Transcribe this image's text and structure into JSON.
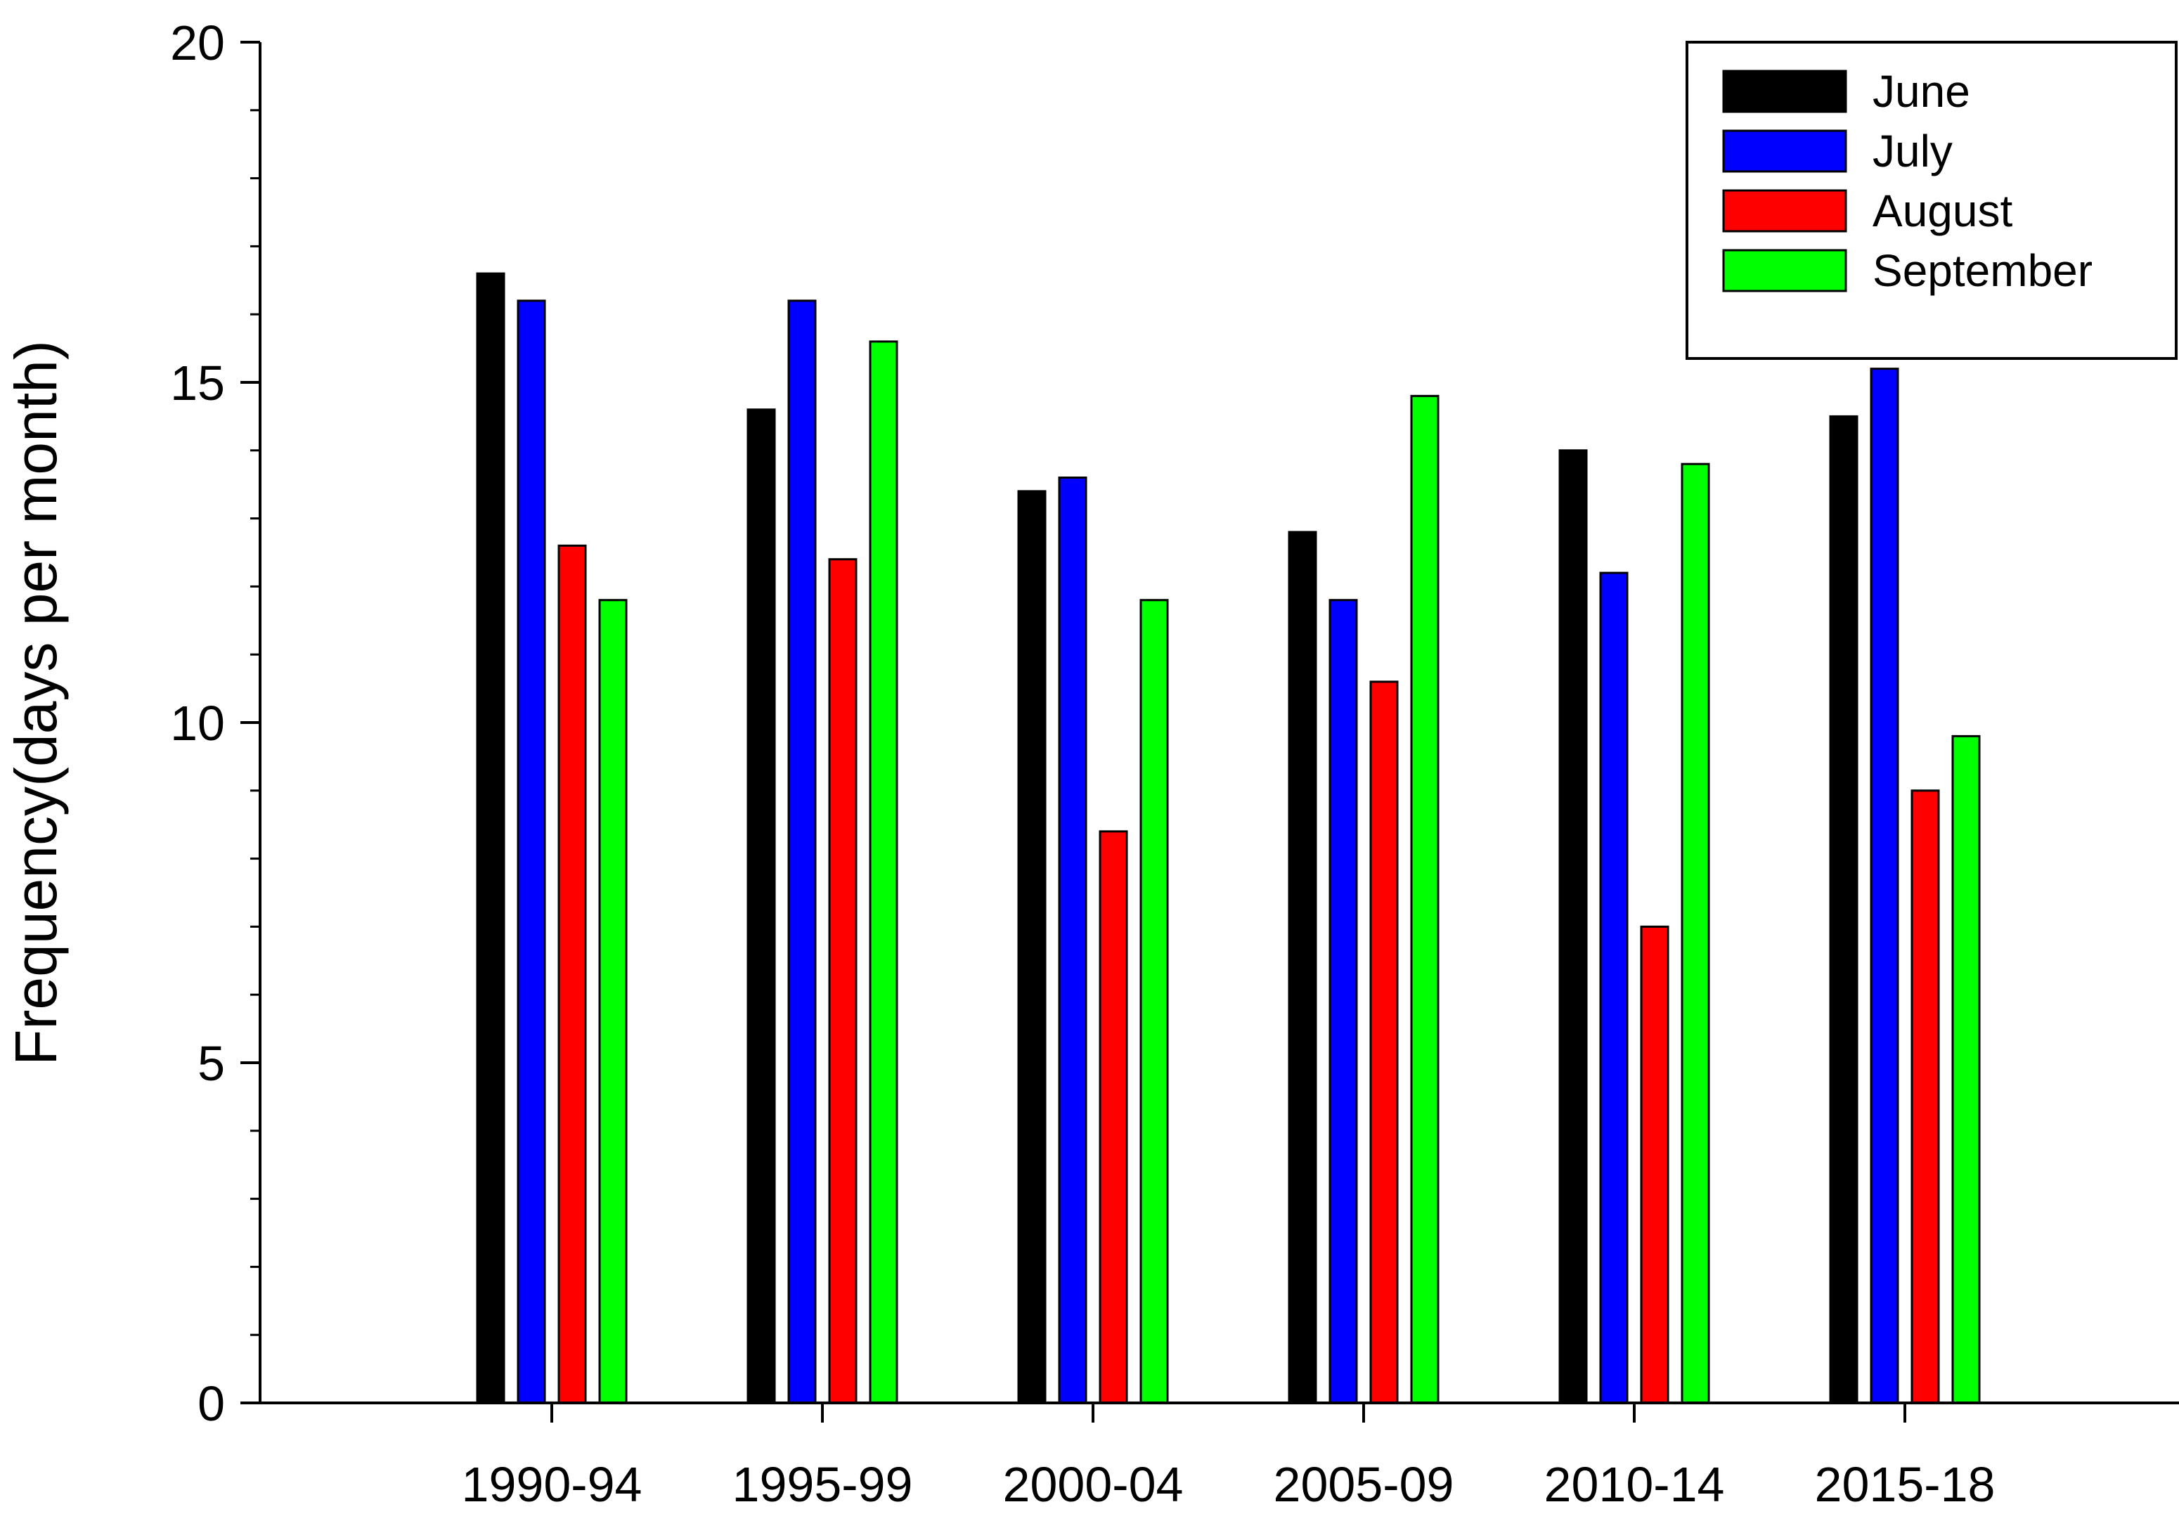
{
  "chart_data": {
    "type": "bar",
    "title": "",
    "xlabel": "",
    "ylabel": "Frequency(days per month)",
    "ylim": [
      0,
      20
    ],
    "y_ticks": [
      "0",
      "5",
      "10",
      "15",
      "20"
    ],
    "grid": false,
    "legend_position": "top-right",
    "categories": [
      "1990-94",
      "1995-99",
      "2000-04",
      "2005-09",
      "2010-14",
      "2015-18"
    ],
    "series": [
      {
        "name": "June",
        "color": "#000000",
        "values": [
          16.6,
          14.6,
          13.4,
          12.8,
          14.0,
          14.5
        ]
      },
      {
        "name": "July",
        "color": "#0000ff",
        "values": [
          16.2,
          16.2,
          13.6,
          11.8,
          12.2,
          15.2
        ]
      },
      {
        "name": "August",
        "color": "#ff0000",
        "values": [
          12.6,
          12.4,
          8.4,
          10.6,
          7.0,
          9.0
        ]
      },
      {
        "name": "September",
        "color": "#00ff00",
        "values": [
          11.8,
          15.6,
          11.8,
          14.8,
          13.8,
          9.8
        ]
      }
    ]
  }
}
